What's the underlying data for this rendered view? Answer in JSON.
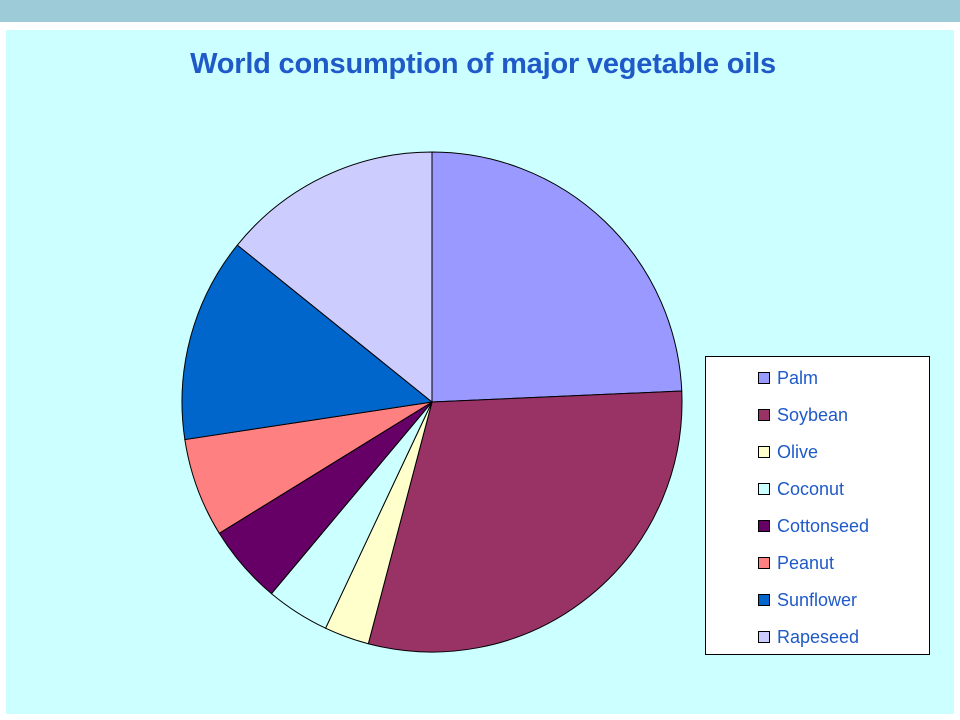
{
  "chart_data": {
    "type": "pie",
    "title": "World consumption of major vegetable oils",
    "categories": [
      "Palm",
      "Soybean",
      "Olive",
      "Coconut",
      "Cottonseed",
      "Peanut",
      "Sunflower",
      "Rapeseed"
    ],
    "values": [
      24.3,
      29.8,
      2.9,
      4.1,
      5.1,
      6.4,
      13.2,
      14.2
    ],
    "unit": "percent of total",
    "colors": [
      "#9999ff",
      "#993366",
      "#ffffcc",
      "#ccffff",
      "#660066",
      "#ff8080",
      "#0066cc",
      "#ccccff"
    ],
    "legend_position": "right"
  }
}
